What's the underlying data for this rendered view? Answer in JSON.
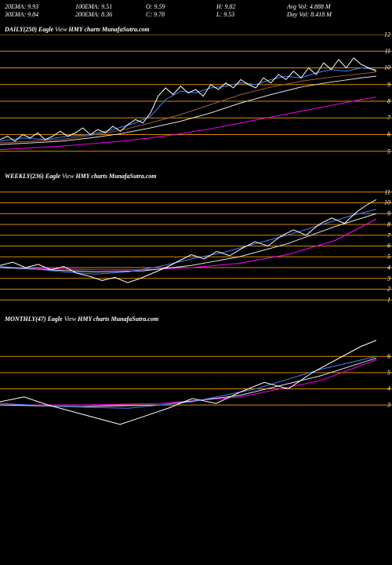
{
  "header": {
    "row1": {
      "c1": "20EMA: 9.93",
      "c2": "100EMA: 9.51",
      "c3": "O: 9.59",
      "c4": "H: 9.82",
      "c5": "Avg Vol: 4.888  M"
    },
    "row2": {
      "c1": "30EMA: 9.84",
      "c2": "200EMA: 8.36",
      "c3": "C: 9.78",
      "c4": "L: 9.53",
      "c5": "Day Vol: 8.418 M"
    }
  },
  "charts": [
    {
      "title_prefix": "DAILY(250) Eagle",
      "title_mid": "View",
      "title_suffix": "HMY charts MunafaSutra.com",
      "height": 170,
      "ylim": [
        4,
        12
      ],
      "yticks": [
        5,
        6,
        7,
        8,
        9,
        10,
        11,
        12
      ],
      "ytick_labels": [
        "5",
        "6",
        "7",
        "8",
        "9",
        "10",
        "11",
        "12"
      ],
      "grid_color": "#d88c00",
      "background_color": "#000000",
      "series": [
        {
          "name": "ma-long",
          "color": "#ff00ff",
          "points": [
            [
              0,
              5.1
            ],
            [
              20,
              5.2
            ],
            [
              40,
              5.3
            ],
            [
              60,
              5.45
            ],
            [
              80,
              5.6
            ],
            [
              100,
              5.8
            ],
            [
              120,
              6.05
            ],
            [
              140,
              6.35
            ],
            [
              160,
              6.7
            ],
            [
              180,
              7.05
            ],
            [
              200,
              7.4
            ],
            [
              220,
              7.75
            ],
            [
              240,
              8.1
            ],
            [
              250,
              8.25
            ]
          ]
        },
        {
          "name": "ma-mid1",
          "color": "#e0e0e0",
          "points": [
            [
              0,
              5.4
            ],
            [
              20,
              5.5
            ],
            [
              40,
              5.6
            ],
            [
              60,
              5.8
            ],
            [
              80,
              6.05
            ],
            [
              100,
              6.4
            ],
            [
              120,
              6.8
            ],
            [
              140,
              7.3
            ],
            [
              160,
              7.9
            ],
            [
              180,
              8.4
            ],
            [
              200,
              8.85
            ],
            [
              220,
              9.15
            ],
            [
              240,
              9.4
            ],
            [
              250,
              9.5
            ]
          ]
        },
        {
          "name": "ma-mid2",
          "color": "#a06040",
          "points": [
            [
              0,
              5.5
            ],
            [
              20,
              5.6
            ],
            [
              40,
              5.7
            ],
            [
              60,
              5.95
            ],
            [
              80,
              6.25
            ],
            [
              100,
              6.7
            ],
            [
              120,
              7.2
            ],
            [
              140,
              7.8
            ],
            [
              160,
              8.4
            ],
            [
              180,
              8.85
            ],
            [
              200,
              9.2
            ],
            [
              220,
              9.45
            ],
            [
              240,
              9.65
            ],
            [
              250,
              9.75
            ]
          ]
        },
        {
          "name": "ma-short",
          "color": "#4080ff",
          "points": [
            [
              0,
              5.6
            ],
            [
              15,
              5.8
            ],
            [
              30,
              5.7
            ],
            [
              45,
              5.9
            ],
            [
              60,
              6.0
            ],
            [
              75,
              6.3
            ],
            [
              90,
              6.7
            ],
            [
              100,
              7.1
            ],
            [
              110,
              8.1
            ],
            [
              120,
              8.6
            ],
            [
              130,
              8.5
            ],
            [
              140,
              8.8
            ],
            [
              150,
              8.9
            ],
            [
              160,
              9.1
            ],
            [
              170,
              9.0
            ],
            [
              180,
              9.3
            ],
            [
              190,
              9.5
            ],
            [
              200,
              9.4
            ],
            [
              210,
              9.7
            ],
            [
              220,
              9.9
            ],
            [
              230,
              9.8
            ],
            [
              240,
              10.0
            ],
            [
              250,
              9.9
            ]
          ]
        },
        {
          "name": "price",
          "color": "#ffffff",
          "points": [
            [
              0,
              5.7
            ],
            [
              5,
              5.9
            ],
            [
              10,
              5.6
            ],
            [
              15,
              6.0
            ],
            [
              20,
              5.8
            ],
            [
              25,
              6.1
            ],
            [
              30,
              5.7
            ],
            [
              35,
              5.9
            ],
            [
              40,
              6.2
            ],
            [
              45,
              5.9
            ],
            [
              50,
              6.1
            ],
            [
              55,
              6.4
            ],
            [
              60,
              6.0
            ],
            [
              65,
              6.3
            ],
            [
              70,
              6.1
            ],
            [
              75,
              6.5
            ],
            [
              80,
              6.2
            ],
            [
              85,
              6.6
            ],
            [
              90,
              6.9
            ],
            [
              95,
              6.7
            ],
            [
              100,
              7.3
            ],
            [
              105,
              8.3
            ],
            [
              110,
              8.8
            ],
            [
              115,
              8.4
            ],
            [
              120,
              8.9
            ],
            [
              125,
              8.5
            ],
            [
              130,
              8.7
            ],
            [
              135,
              8.3
            ],
            [
              140,
              9.0
            ],
            [
              145,
              8.7
            ],
            [
              150,
              9.1
            ],
            [
              155,
              8.8
            ],
            [
              160,
              9.3
            ],
            [
              165,
              9.0
            ],
            [
              170,
              8.8
            ],
            [
              175,
              9.4
            ],
            [
              180,
              9.1
            ],
            [
              185,
              9.6
            ],
            [
              190,
              9.3
            ],
            [
              195,
              9.8
            ],
            [
              200,
              9.4
            ],
            [
              205,
              10.0
            ],
            [
              210,
              9.6
            ],
            [
              215,
              10.3
            ],
            [
              220,
              9.9
            ],
            [
              225,
              10.5
            ],
            [
              230,
              10.0
            ],
            [
              235,
              10.6
            ],
            [
              240,
              10.2
            ],
            [
              245,
              10.0
            ],
            [
              250,
              9.8
            ]
          ]
        }
      ]
    },
    {
      "title_prefix": "WEEKLY(236) Eagle",
      "title_mid": "View",
      "title_suffix": "HMY charts MunafaSutra.com",
      "height": 165,
      "ylim": [
        0,
        12
      ],
      "yticks": [
        1,
        2,
        3,
        4,
        5,
        6,
        7,
        8,
        9,
        10,
        11
      ],
      "ytick_labels": [
        "1",
        "2",
        "3",
        "4",
        "5",
        "6",
        "7",
        "8",
        "9",
        "10",
        "11"
      ],
      "grid_color": "#d88c00",
      "background_color": "#000000",
      "series": [
        {
          "name": "ma-long",
          "color": "#ff00ff",
          "points": [
            [
              0,
              4.0
            ],
            [
              30,
              3.9
            ],
            [
              60,
              3.8
            ],
            [
              90,
              3.8
            ],
            [
              120,
              4.0
            ],
            [
              150,
              4.4
            ],
            [
              180,
              5.2
            ],
            [
              210,
              6.5
            ],
            [
              236,
              8.5
            ]
          ]
        },
        {
          "name": "ma-mid",
          "color": "#e0e0e0",
          "points": [
            [
              0,
              4.0
            ],
            [
              30,
              3.8
            ],
            [
              60,
              3.6
            ],
            [
              90,
              3.7
            ],
            [
              120,
              4.2
            ],
            [
              150,
              5.0
            ],
            [
              180,
              6.2
            ],
            [
              210,
              7.8
            ],
            [
              236,
              9.0
            ]
          ]
        },
        {
          "name": "ma-short",
          "color": "#4080ff",
          "points": [
            [
              0,
              4.1
            ],
            [
              20,
              3.9
            ],
            [
              40,
              3.6
            ],
            [
              60,
              3.4
            ],
            [
              80,
              3.6
            ],
            [
              100,
              4.1
            ],
            [
              120,
              4.8
            ],
            [
              140,
              5.4
            ],
            [
              160,
              6.2
            ],
            [
              180,
              7.0
            ],
            [
              200,
              7.9
            ],
            [
              220,
              8.8
            ],
            [
              236,
              9.4
            ]
          ]
        },
        {
          "name": "price",
          "color": "#ffffff",
          "points": [
            [
              0,
              4.2
            ],
            [
              8,
              4.5
            ],
            [
              16,
              4.0
            ],
            [
              24,
              4.3
            ],
            [
              32,
              3.8
            ],
            [
              40,
              4.1
            ],
            [
              48,
              3.5
            ],
            [
              56,
              3.2
            ],
            [
              64,
              2.8
            ],
            [
              72,
              3.1
            ],
            [
              80,
              2.6
            ],
            [
              88,
              3.0
            ],
            [
              96,
              3.5
            ],
            [
              104,
              4.0
            ],
            [
              112,
              4.6
            ],
            [
              120,
              5.2
            ],
            [
              128,
              4.8
            ],
            [
              136,
              5.5
            ],
            [
              144,
              5.1
            ],
            [
              152,
              5.8
            ],
            [
              160,
              6.4
            ],
            [
              168,
              6.0
            ],
            [
              176,
              6.9
            ],
            [
              184,
              7.5
            ],
            [
              192,
              7.0
            ],
            [
              200,
              8.0
            ],
            [
              208,
              8.6
            ],
            [
              216,
              8.1
            ],
            [
              224,
              9.2
            ],
            [
              230,
              9.8
            ],
            [
              236,
              10.3
            ]
          ]
        }
      ]
    },
    {
      "title_prefix": "MONTHLY(47) Eagle",
      "title_mid": "View",
      "title_suffix": "HMY charts MunafaSutra.com",
      "height": 165,
      "ylim": [
        0,
        8
      ],
      "yticks": [
        3,
        4,
        5,
        6
      ],
      "ytick_labels": [
        "3",
        "4",
        "5",
        "6"
      ],
      "grid_color": "#d88c00",
      "background_color": "#000000",
      "series": [
        {
          "name": "ma-long",
          "color": "#ff00ff",
          "points": [
            [
              0,
              3.0
            ],
            [
              10,
              3.0
            ],
            [
              20,
              3.1
            ],
            [
              30,
              3.5
            ],
            [
              40,
              4.5
            ],
            [
              47,
              5.8
            ]
          ]
        },
        {
          "name": "ma-mid",
          "color": "#e0e0e0",
          "points": [
            [
              0,
              3.0
            ],
            [
              10,
              2.9
            ],
            [
              20,
              3.0
            ],
            [
              30,
              3.6
            ],
            [
              40,
              4.8
            ],
            [
              47,
              5.9
            ]
          ]
        },
        {
          "name": "ma-short",
          "color": "#4080ff",
          "points": [
            [
              0,
              3.1
            ],
            [
              8,
              2.9
            ],
            [
              16,
              2.8
            ],
            [
              24,
              3.2
            ],
            [
              32,
              4.0
            ],
            [
              40,
              5.2
            ],
            [
              47,
              6.0
            ]
          ]
        },
        {
          "name": "price",
          "color": "#ffffff",
          "points": [
            [
              0,
              3.2
            ],
            [
              3,
              3.5
            ],
            [
              6,
              3.0
            ],
            [
              9,
              2.6
            ],
            [
              12,
              2.2
            ],
            [
              15,
              1.8
            ],
            [
              18,
              2.3
            ],
            [
              21,
              2.8
            ],
            [
              24,
              3.4
            ],
            [
              27,
              3.1
            ],
            [
              30,
              3.8
            ],
            [
              33,
              4.4
            ],
            [
              36,
              4.0
            ],
            [
              39,
              5.0
            ],
            [
              42,
              5.8
            ],
            [
              45,
              6.6
            ],
            [
              47,
              7.0
            ]
          ]
        }
      ]
    }
  ]
}
